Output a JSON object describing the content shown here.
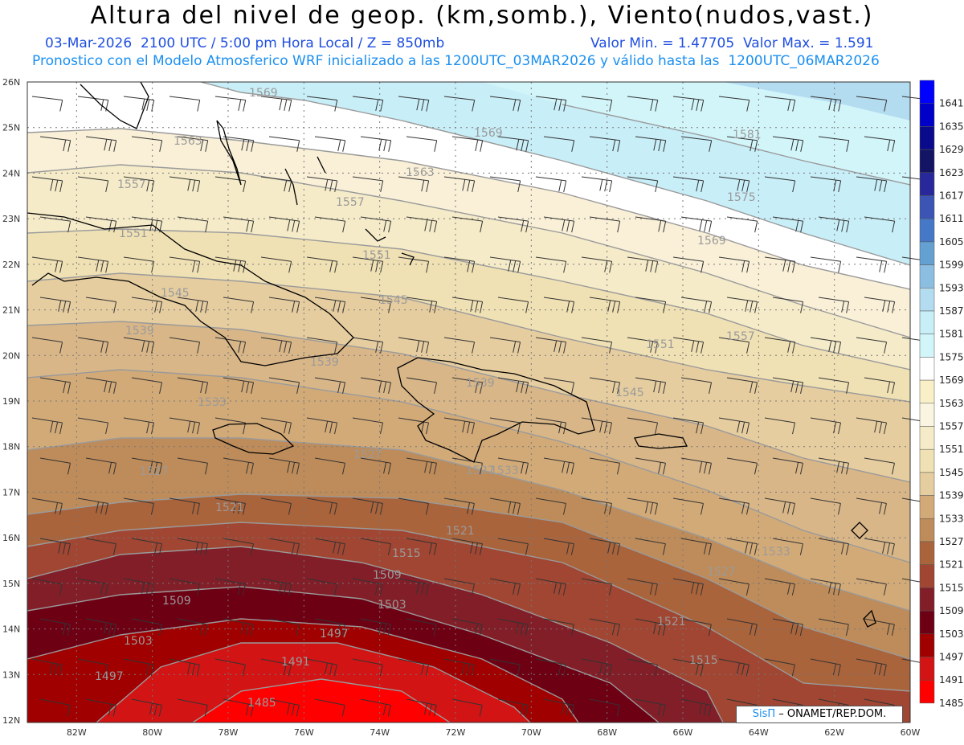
{
  "header": {
    "title": "Altura del nivel de geop. (km,somb.), Viento(nudos,vast.)",
    "date_line": "03-Mar-2026  2100 UTC / 5:00 pm Hora Local / Z = 850mb",
    "minmax_line": "Valor Min. = 1.47705  Valor Max. = 1.591",
    "model_line": "Pronostico con el Modelo Atmosferico WRF inicializado a las 1200UTC_03MAR2026 y válido hasta las  1200UTC_06MAR2026"
  },
  "map": {
    "lat_labels": [
      "26N",
      "25N",
      "24N",
      "23N",
      "22N",
      "21N",
      "20N",
      "19N",
      "18N",
      "17N",
      "16N",
      "15N",
      "14N",
      "13N",
      "12N"
    ],
    "lon_labels": [
      "82W",
      "80W",
      "78W",
      "76W",
      "74W",
      "72W",
      "70W",
      "68W",
      "66W",
      "64W",
      "62W",
      "60W"
    ],
    "contour_labels": [
      {
        "text": "1569"
      },
      {
        "text": "1569"
      },
      {
        "text": "1581"
      },
      {
        "text": "1563"
      },
      {
        "text": "1563"
      },
      {
        "text": "1575"
      },
      {
        "text": "1557"
      },
      {
        "text": "1557"
      },
      {
        "text": "1569"
      },
      {
        "text": "1551"
      },
      {
        "text": "1551"
      },
      {
        "text": "1545"
      },
      {
        "text": "1545"
      },
      {
        "text": "1539"
      },
      {
        "text": "1557"
      },
      {
        "text": "1551"
      },
      {
        "text": "1539"
      },
      {
        "text": "1545"
      },
      {
        "text": "1527"
      },
      {
        "text": "1539"
      },
      {
        "text": "1533"
      },
      {
        "text": "1527"
      },
      {
        "text": "1527"
      },
      {
        "text": "1533"
      },
      {
        "text": "1521"
      },
      {
        "text": "1521"
      },
      {
        "text": "1515"
      },
      {
        "text": "1533"
      },
      {
        "text": "1509"
      },
      {
        "text": "1527"
      },
      {
        "text": "1509"
      },
      {
        "text": "1503"
      },
      {
        "text": "1497"
      },
      {
        "text": "1503"
      },
      {
        "text": "1521"
      },
      {
        "text": "1491"
      },
      {
        "text": "1497"
      },
      {
        "text": "1515"
      },
      {
        "text": "1485"
      }
    ]
  },
  "colorbar": {
    "labels": [
      "1641",
      "1635",
      "1629",
      "1623",
      "1617",
      "1611",
      "1605",
      "1599",
      "1593",
      "1587",
      "1581",
      "1575",
      "1569",
      "1563",
      "1557",
      "1551",
      "1545",
      "1539",
      "1533",
      "1527",
      "1521",
      "1515",
      "1509",
      "1503",
      "1497",
      "1491",
      "1485"
    ],
    "colors": [
      "#0000ff",
      "#0000c8",
      "#0a0a8c",
      "#141464",
      "#28289a",
      "#3c55b4",
      "#4678c8",
      "#64a0d2",
      "#8cbee1",
      "#b4dcf0",
      "#c8eef8",
      "#d2f5fa",
      "#ffffff",
      "#faf0c8",
      "#faf5e1",
      "#f5ebc8",
      "#f0e1b4",
      "#e6cda0",
      "#d2aa78",
      "#be8c5a",
      "#aa643c",
      "#a04632",
      "#821e28",
      "#6e0014",
      "#a00000",
      "#d21414",
      "#ff0000"
    ]
  },
  "credit": {
    "brand": "SisΠ",
    "text": " – ONAMET/REP.DOM."
  }
}
